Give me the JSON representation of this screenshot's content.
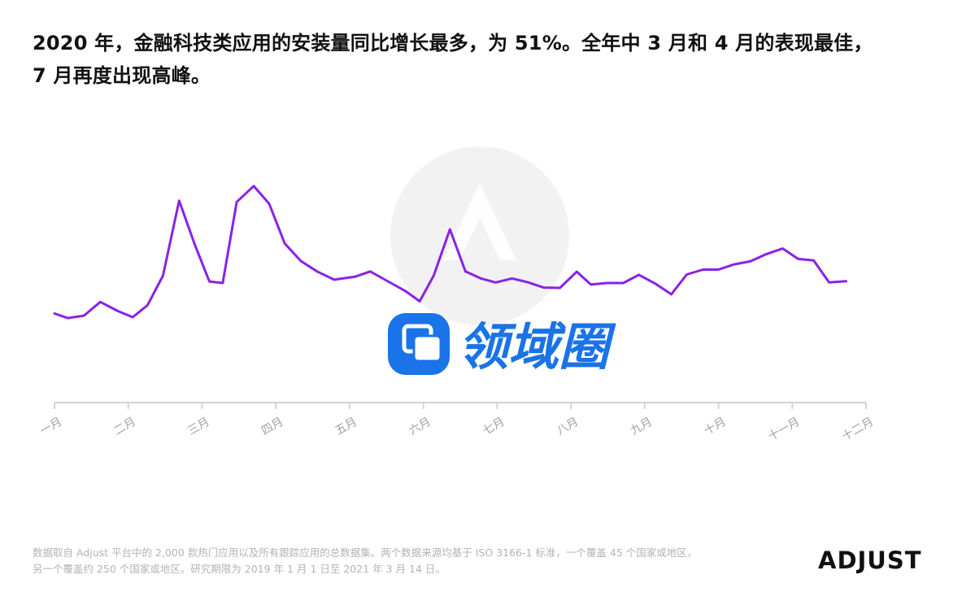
{
  "title": {
    "line1": "2020 年，金融科技类应用的安装量同比增长最多，为 51%。全年中 3 月和 4 月的表现最佳，",
    "line2": "7 月再度出现高峰。"
  },
  "footnote": {
    "line1": "数据取自 Adjust 平台中的 2,000 款热门应用以及所有跟踪应用的总数据集。两个数据来源均基于 ISO 3166-1 标准，一个覆盖 45 个国家或地区，",
    "line2": "另一个覆盖约 250 个国家或地区。研究期限为 2019 年 1 月 1 日至 2021 年 3 月 14 日。"
  },
  "logo": {
    "text": "ADJUST"
  },
  "watermark": {
    "text": "领域圈"
  },
  "colors": {
    "line": "#8a22e6",
    "axis": "#d3d3d3",
    "tick_label": "#a0a0a0",
    "watermark_blue": "#1a73e8"
  },
  "chart_data": {
    "type": "line",
    "title": "",
    "xlabel": "",
    "ylabel": "",
    "grid": false,
    "legend": "none",
    "categories": [
      "一月",
      "二月",
      "三月",
      "四月",
      "五月",
      "六月",
      "七月",
      "八月",
      "九月",
      "十月",
      "十一月",
      "十二月"
    ],
    "ylim": [
      0,
      100
    ],
    "series": [
      {
        "values": [
          {
            "x": 0.0,
            "y": 29.2
          },
          {
            "x": 0.18,
            "y": 27.7
          },
          {
            "x": 0.4,
            "y": 28.5
          },
          {
            "x": 0.62,
            "y": 33.0
          },
          {
            "x": 0.86,
            "y": 30.0
          },
          {
            "x": 1.06,
            "y": 28.0
          },
          {
            "x": 1.26,
            "y": 31.9
          },
          {
            "x": 1.47,
            "y": 41.6
          },
          {
            "x": 1.69,
            "y": 66.2
          },
          {
            "x": 1.9,
            "y": 51.9
          },
          {
            "x": 2.1,
            "y": 39.7
          },
          {
            "x": 2.28,
            "y": 39.2
          },
          {
            "x": 2.47,
            "y": 65.8
          },
          {
            "x": 2.7,
            "y": 71.0
          },
          {
            "x": 2.91,
            "y": 65.2
          },
          {
            "x": 3.12,
            "y": 52.2
          },
          {
            "x": 3.34,
            "y": 46.4
          },
          {
            "x": 3.56,
            "y": 43.0
          },
          {
            "x": 3.79,
            "y": 40.3
          },
          {
            "x": 4.08,
            "y": 41.3
          },
          {
            "x": 4.28,
            "y": 43.0
          },
          {
            "x": 4.5,
            "y": 40.0
          },
          {
            "x": 4.76,
            "y": 36.5
          },
          {
            "x": 4.95,
            "y": 33.2
          },
          {
            "x": 5.14,
            "y": 41.6
          },
          {
            "x": 5.36,
            "y": 56.8
          },
          {
            "x": 5.57,
            "y": 43.0
          },
          {
            "x": 5.78,
            "y": 40.7
          },
          {
            "x": 5.98,
            "y": 39.4
          },
          {
            "x": 6.2,
            "y": 40.7
          },
          {
            "x": 6.41,
            "y": 39.5
          },
          {
            "x": 6.63,
            "y": 37.7
          },
          {
            "x": 6.85,
            "y": 37.6
          },
          {
            "x": 7.08,
            "y": 42.9
          },
          {
            "x": 7.27,
            "y": 38.7
          },
          {
            "x": 7.49,
            "y": 39.2
          },
          {
            "x": 7.71,
            "y": 39.2
          },
          {
            "x": 7.92,
            "y": 41.9
          },
          {
            "x": 8.15,
            "y": 38.9
          },
          {
            "x": 8.36,
            "y": 35.5
          },
          {
            "x": 8.57,
            "y": 42.0
          },
          {
            "x": 8.79,
            "y": 43.6
          },
          {
            "x": 9.0,
            "y": 43.6
          },
          {
            "x": 9.21,
            "y": 45.3
          },
          {
            "x": 9.43,
            "y": 46.3
          },
          {
            "x": 9.65,
            "y": 48.7
          },
          {
            "x": 9.87,
            "y": 50.5
          },
          {
            "x": 10.08,
            "y": 47.1
          },
          {
            "x": 10.29,
            "y": 46.6
          },
          {
            "x": 10.5,
            "y": 39.4
          },
          {
            "x": 10.73,
            "y": 39.8
          }
        ]
      }
    ]
  }
}
